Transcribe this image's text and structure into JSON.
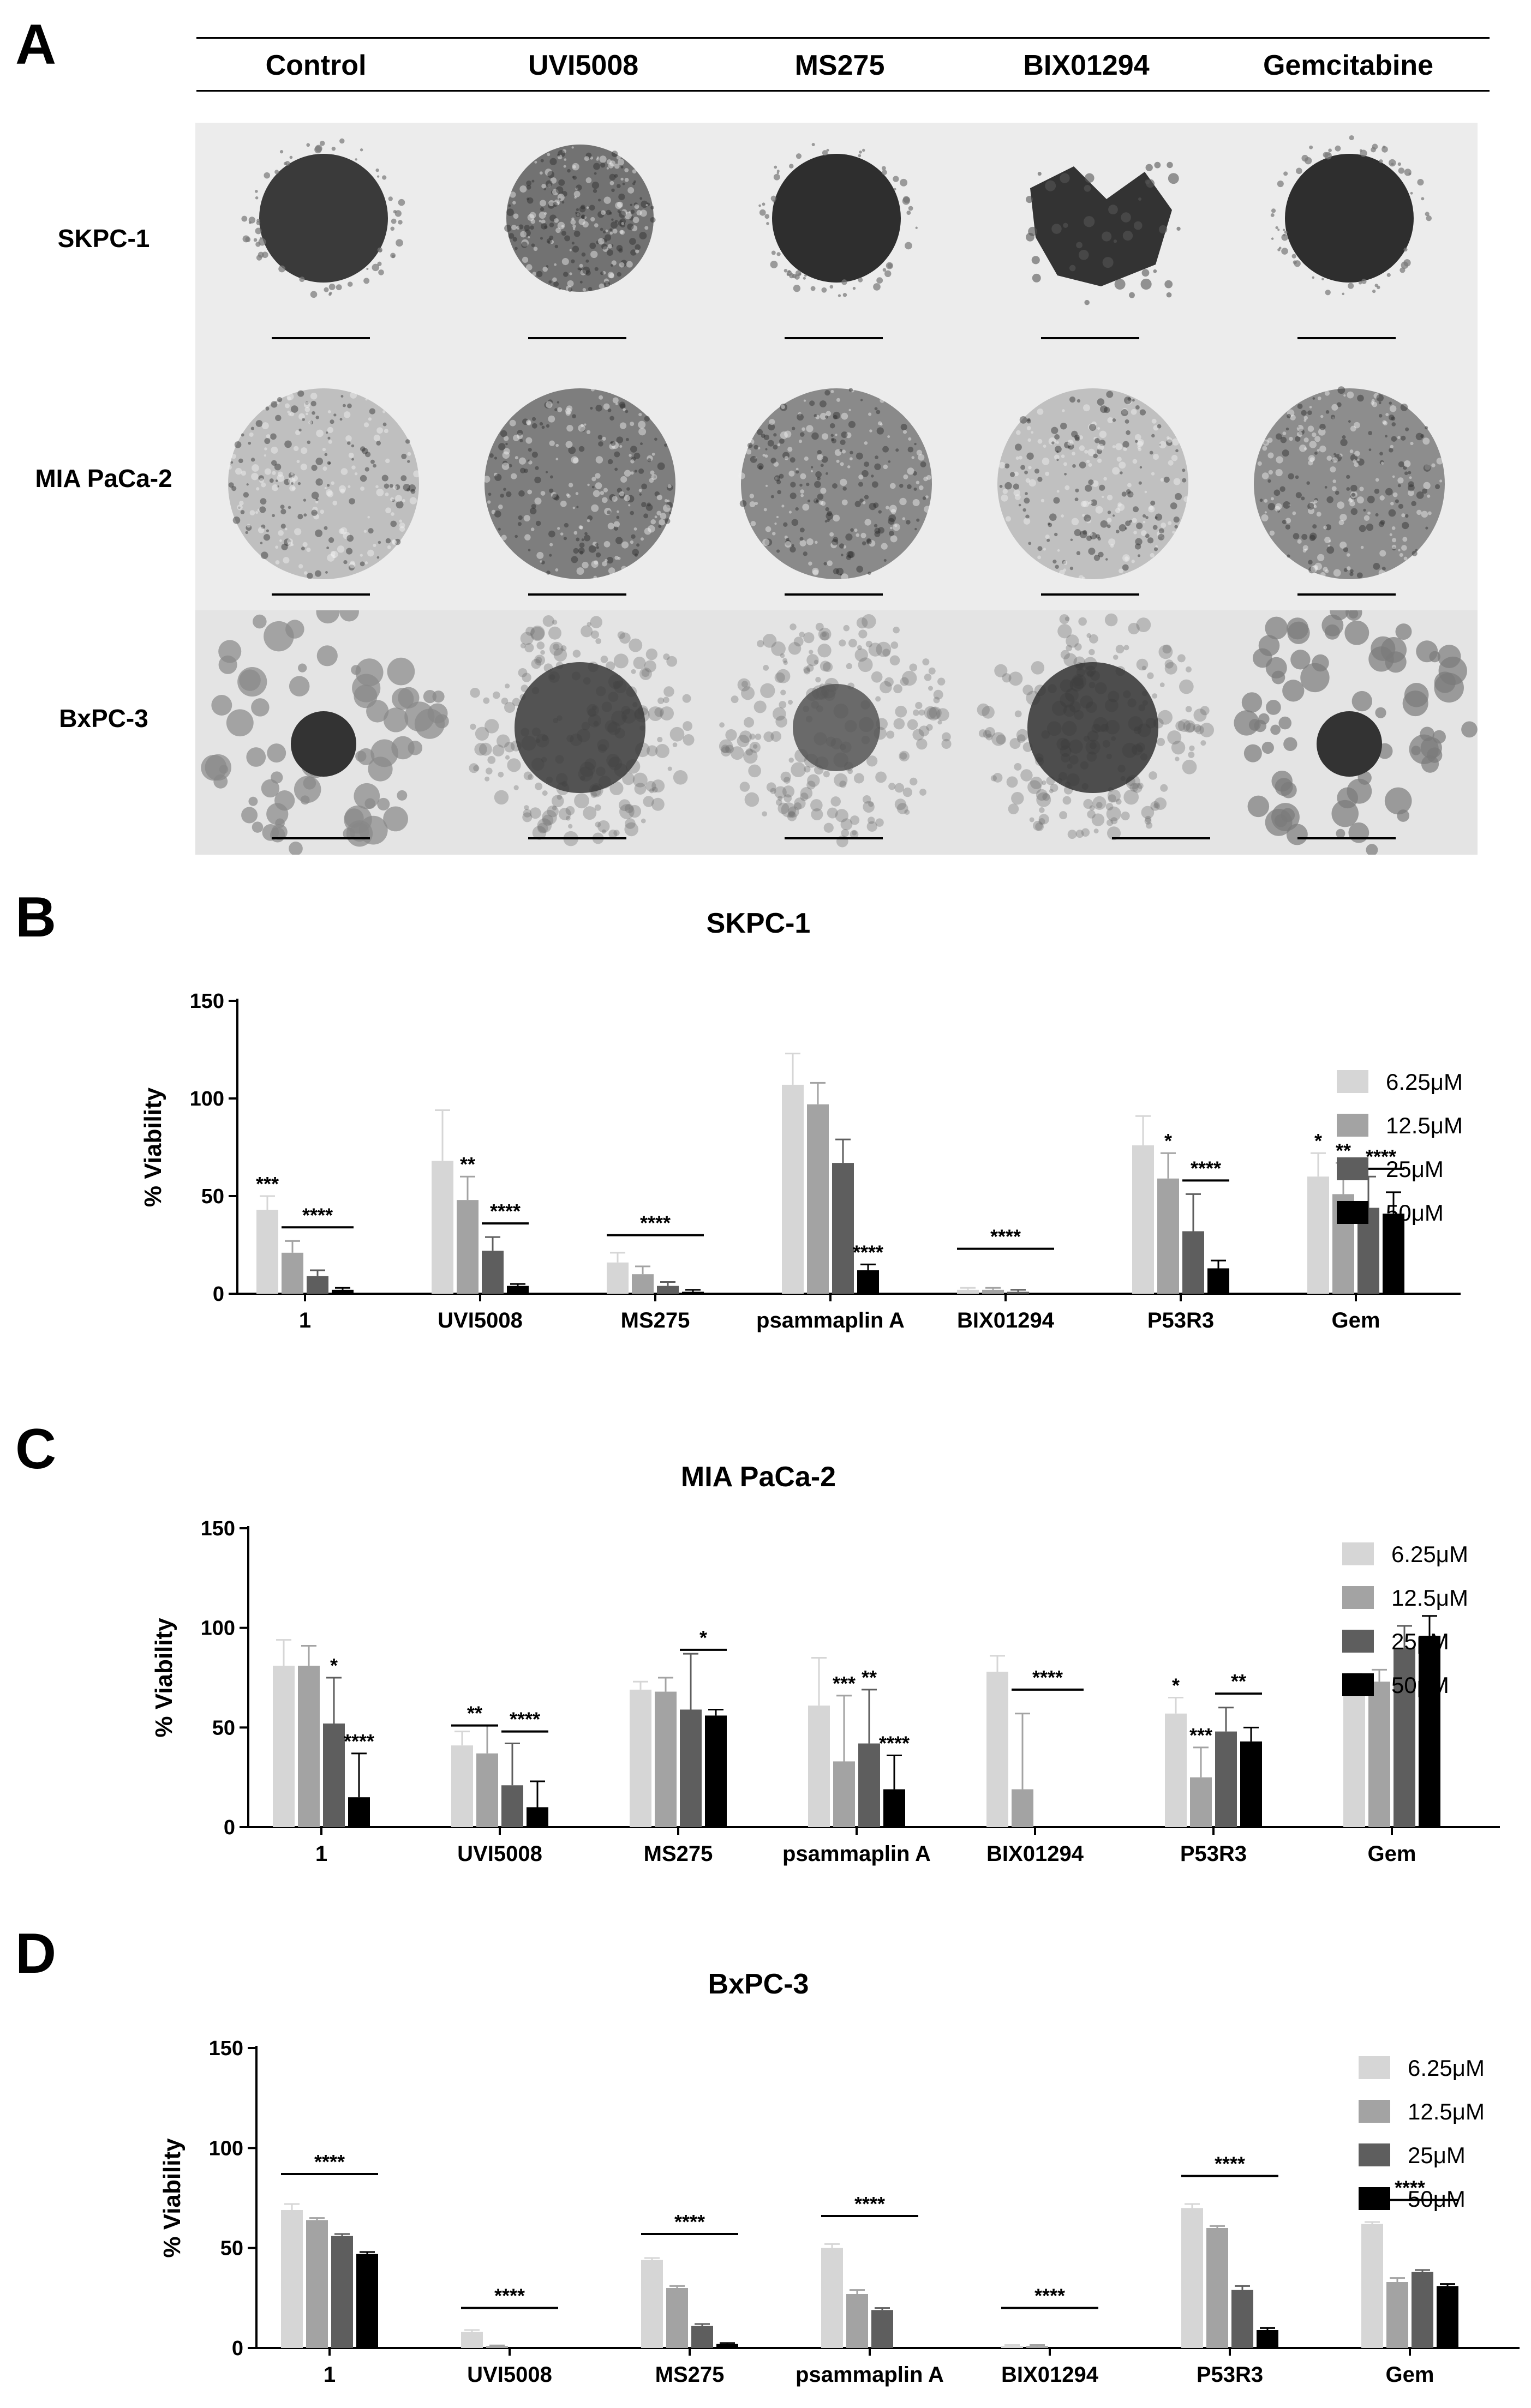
{
  "panels": {
    "A": "A",
    "B": "B",
    "C": "C",
    "D": "D"
  },
  "panelA": {
    "columns": [
      "Control",
      "UVI5008",
      "MS275",
      "BIX01294",
      "Gemcitabine"
    ],
    "rows": [
      "SKPC-1",
      "MIA PaCa-2",
      "BxPC-3"
    ]
  },
  "chart_data": [
    {
      "type": "bar",
      "title": "SKPC-1",
      "ylabel": "% Viability",
      "ylim": [
        0,
        150
      ],
      "yticks": [
        "0",
        "50",
        "100",
        "150"
      ],
      "categories": [
        "1",
        "UVI5008",
        "MS275",
        "psammaplin A",
        "BIX01294",
        "P53R3",
        "Gem"
      ],
      "series": [
        {
          "name": "6.25μM",
          "values": [
            43,
            68,
            16,
            107,
            2,
            76,
            60
          ],
          "errors": [
            7,
            26,
            5,
            16,
            1,
            15,
            12
          ]
        },
        {
          "name": "12.5μM",
          "values": [
            21,
            48,
            10,
            97,
            2,
            59,
            51
          ],
          "errors": [
            6,
            12,
            4,
            11,
            1,
            13,
            16
          ]
        },
        {
          "name": "25μM",
          "values": [
            9,
            22,
            4,
            67,
            1,
            32,
            44
          ],
          "errors": [
            3,
            7,
            2,
            12,
            1,
            19,
            16
          ]
        },
        {
          "name": "50μM",
          "values": [
            2,
            4,
            1,
            12,
            0,
            13,
            41
          ],
          "errors": [
            1,
            1,
            1,
            3,
            0,
            4,
            11
          ]
        }
      ],
      "bar_stars": [
        {
          "cat": 0,
          "series": 0,
          "text": "***"
        },
        {
          "cat": 1,
          "series": 1,
          "text": "**"
        },
        {
          "cat": 3,
          "series": 3,
          "text": "****"
        },
        {
          "cat": 5,
          "series": 1,
          "text": "*"
        },
        {
          "cat": 6,
          "series": 0,
          "text": "*"
        },
        {
          "cat": 6,
          "series": 1,
          "text": "**"
        }
      ],
      "brackets": [
        {
          "cat": 0,
          "from": 1,
          "to": 3,
          "y": 34,
          "text": "****"
        },
        {
          "cat": 1,
          "from": 2,
          "to": 3,
          "y": 36,
          "text": "****"
        },
        {
          "cat": 2,
          "from": 0,
          "to": 3,
          "y": 30,
          "text": "****"
        },
        {
          "cat": 4,
          "from": 0,
          "to": 3,
          "y": 23,
          "text": "****"
        },
        {
          "cat": 5,
          "from": 2,
          "to": 3,
          "y": 58,
          "text": "****"
        },
        {
          "cat": 6,
          "from": 2,
          "to": 3,
          "y": 64,
          "text": "****"
        }
      ]
    },
    {
      "type": "bar",
      "title": "MIA PaCa-2",
      "ylabel": "% Viability",
      "ylim": [
        0,
        150
      ],
      "yticks": [
        "0",
        "50",
        "100",
        "150"
      ],
      "categories": [
        "1",
        "UVI5008",
        "MS275",
        "psammaplin A",
        "BIX01294",
        "P53R3",
        "Gem"
      ],
      "series": [
        {
          "name": "6.25μM",
          "values": [
            81,
            41,
            69,
            61,
            78,
            57,
            69
          ],
          "errors": [
            13,
            7,
            4,
            24,
            8,
            8,
            8
          ]
        },
        {
          "name": "12.5μM",
          "values": [
            81,
            37,
            68,
            33,
            19,
            25,
            73
          ],
          "errors": [
            10,
            14,
            7,
            33,
            38,
            15,
            6
          ]
        },
        {
          "name": "25μM",
          "values": [
            52,
            21,
            59,
            42,
            0,
            48,
            90
          ],
          "errors": [
            23,
            21,
            28,
            27,
            0,
            12,
            11
          ]
        },
        {
          "name": "50μM",
          "values": [
            15,
            10,
            56,
            19,
            0,
            43,
            96
          ],
          "errors": [
            22,
            13,
            3,
            17,
            0,
            7,
            10
          ]
        }
      ],
      "bar_stars": [
        {
          "cat": 0,
          "series": 2,
          "text": "*"
        },
        {
          "cat": 0,
          "series": 3,
          "text": "****"
        },
        {
          "cat": 3,
          "series": 1,
          "text": "***"
        },
        {
          "cat": 3,
          "series": 2,
          "text": "**"
        },
        {
          "cat": 3,
          "series": 3,
          "text": "****"
        },
        {
          "cat": 5,
          "series": 0,
          "text": "*"
        },
        {
          "cat": 5,
          "series": 1,
          "text": "***"
        }
      ],
      "brackets": [
        {
          "cat": 1,
          "from": 0,
          "to": 1,
          "y": 51,
          "text": "**"
        },
        {
          "cat": 1,
          "from": 2,
          "to": 3,
          "y": 48,
          "text": "****"
        },
        {
          "cat": 2,
          "from": 2,
          "to": 3,
          "y": 89,
          "text": "*"
        },
        {
          "cat": 4,
          "from": 1,
          "to": 3,
          "y": 69,
          "text": "****"
        },
        {
          "cat": 5,
          "from": 2,
          "to": 3,
          "y": 67,
          "text": "**"
        }
      ]
    },
    {
      "type": "bar",
      "title": "BxPC-3",
      "ylabel": "% Viability",
      "ylim": [
        0,
        150
      ],
      "yticks": [
        "0",
        "50",
        "100",
        "150"
      ],
      "categories": [
        "1",
        "UVI5008",
        "MS275",
        "psammaplin A",
        "BIX01294",
        "P53R3",
        "Gem"
      ],
      "series": [
        {
          "name": "6.25μM",
          "values": [
            69,
            8,
            44,
            50,
            1,
            70,
            62
          ],
          "errors": [
            3,
            1,
            1,
            2,
            0.5,
            2,
            1
          ]
        },
        {
          "name": "12.5μM",
          "values": [
            64,
            1,
            30,
            27,
            1,
            60,
            33
          ],
          "errors": [
            1,
            0.3,
            1,
            2,
            0.5,
            1,
            2
          ]
        },
        {
          "name": "25μM",
          "values": [
            56,
            0,
            11,
            19,
            0,
            29,
            38
          ],
          "errors": [
            1,
            0,
            1,
            1,
            0,
            2,
            1
          ]
        },
        {
          "name": "50μM",
          "values": [
            47,
            0,
            2,
            0,
            0,
            9,
            31
          ],
          "errors": [
            1,
            0,
            0.5,
            0,
            0,
            1,
            1
          ]
        }
      ],
      "bar_stars": [],
      "brackets": [
        {
          "cat": 0,
          "from": 0,
          "to": 3,
          "y": 87,
          "text": "****"
        },
        {
          "cat": 1,
          "from": 0,
          "to": 3,
          "y": 20,
          "text": "****"
        },
        {
          "cat": 2,
          "from": 0,
          "to": 3,
          "y": 57,
          "text": "****"
        },
        {
          "cat": 3,
          "from": 0,
          "to": 3,
          "y": 66,
          "text": "****"
        },
        {
          "cat": 4,
          "from": 0,
          "to": 3,
          "y": 20,
          "text": "****"
        },
        {
          "cat": 5,
          "from": 0,
          "to": 3,
          "y": 86,
          "text": "****"
        },
        {
          "cat": 6,
          "from": 0,
          "to": 3,
          "y": 74,
          "text": "****"
        }
      ]
    }
  ],
  "colors": [
    "#d6d6d6",
    "#a3a3a3",
    "#5e5e5e",
    "#000000"
  ]
}
